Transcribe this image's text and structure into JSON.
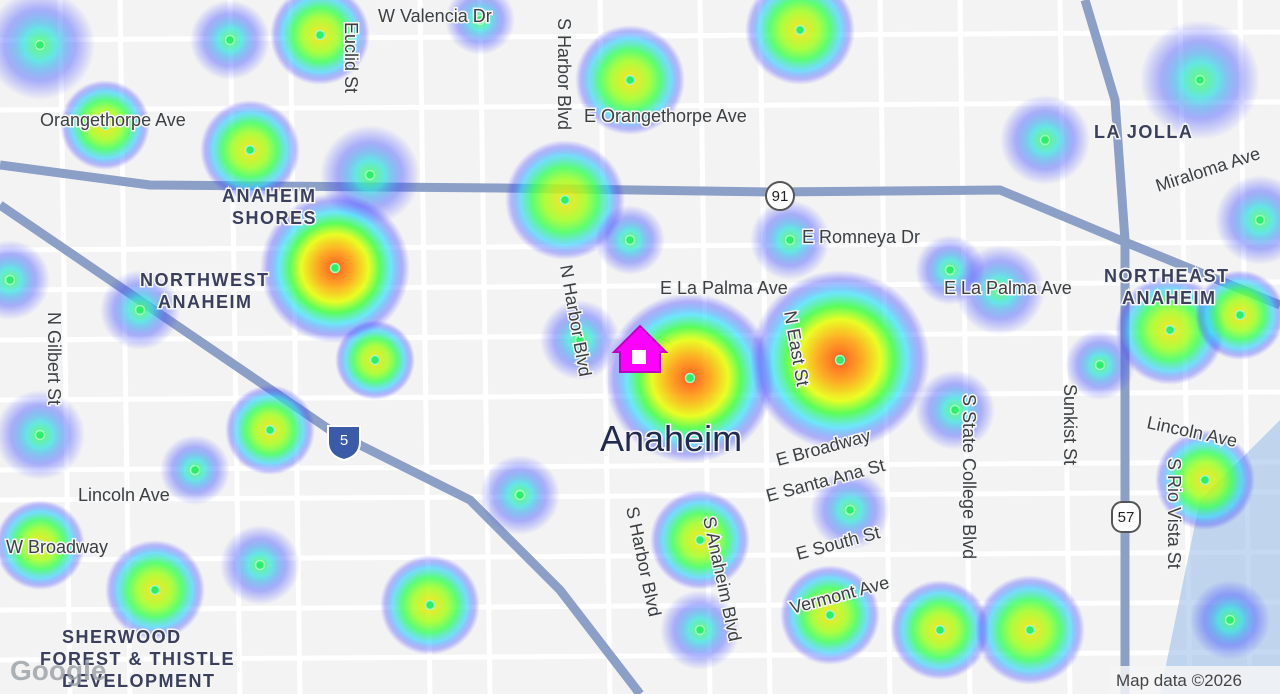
{
  "map": {
    "place_labels": [
      {
        "lines": [
          "ANAHEIM",
          "SHORES"
        ]
      },
      {
        "lines": [
          "NORTHWEST",
          "ANAHEIM"
        ]
      },
      {
        "lines": [
          "NORTHEAST",
          "ANAHEIM"
        ]
      },
      {
        "lines": [
          "LA JOLLA"
        ]
      },
      {
        "lines": [
          "SHERWOOD",
          "FOREST & THISTLE",
          "DEVELOPMENT"
        ]
      }
    ],
    "city_label": "Anaheim",
    "street_labels": [
      "W Valencia Dr",
      "S Harbor Blvd",
      "Euclid St",
      "Orangethorpe Ave",
      "E Orangethorpe Ave",
      "Miraloma Ave",
      "E Romneya Dr",
      "N Harbor Blvd",
      "E La Palma Ave",
      "E La Palma Ave",
      "N Gilbert St",
      "N East St",
      "S State College Blvd",
      "Sunkist St",
      "Lincoln Ave",
      "Lincoln Ave",
      "E Broadway",
      "E Santa Ana St",
      "S Rio Vista St",
      "W Broadway",
      "S Harbor Blvd",
      "S Anaheim Blvd",
      "E South St",
      "Vermont Ave"
    ],
    "highway_shields": [
      "91",
      "5",
      "57"
    ],
    "attribution": {
      "logo": "Google",
      "text": "Map data ©2026"
    }
  }
}
